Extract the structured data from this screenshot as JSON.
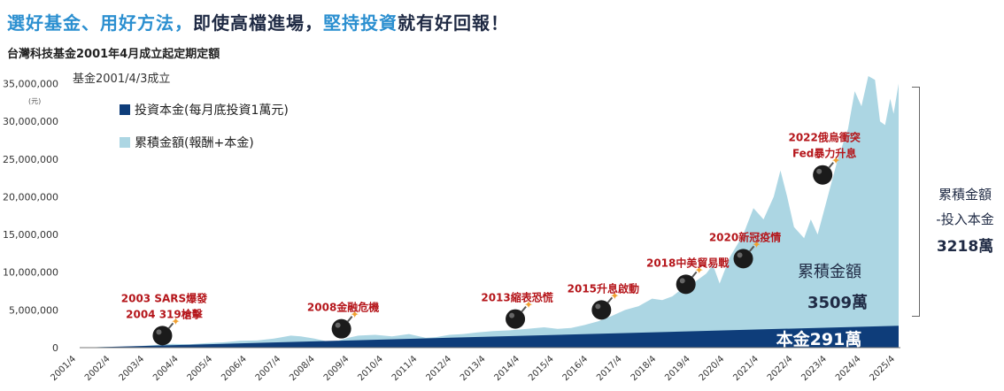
{
  "headline": {
    "part1": "選好基金、用好方法，",
    "part2": "即使高檔進場，",
    "part3": "堅持投資",
    "part4": "就有好回報！"
  },
  "subtitle": "台灣科技基金2001年4月成立起定期定額",
  "right_note": {
    "line1": "累積金額",
    "line2": "-投入本金",
    "value": "3218萬"
  },
  "chart_data": {
    "type": "area",
    "unit_label": "(元)",
    "fund_start_note": "基金2001/4/3成立",
    "ylim": [
      0,
      36000000
    ],
    "y_ticks": [
      {
        "value": 0,
        "label": "0"
      },
      {
        "value": 5000000,
        "label": "5,000,000"
      },
      {
        "value": 10000000,
        "label": "10,000,000"
      },
      {
        "value": 15000000,
        "label": "15,000,000"
      },
      {
        "value": 20000000,
        "label": "20,000,000"
      },
      {
        "value": 25000000,
        "label": "25,000,000"
      },
      {
        "value": 30000000,
        "label": "30,000,000"
      },
      {
        "value": 35000000,
        "label": "35,000,000"
      }
    ],
    "x_ticks": [
      "2001/4",
      "2002/4",
      "2003/4",
      "2004/4",
      "2005/4",
      "2006/4",
      "2007/4",
      "2008/4",
      "2009/4",
      "2010/4",
      "2011/4",
      "2012/4",
      "2013/4",
      "2014/4",
      "2015/4",
      "2016/4",
      "2017/4",
      "2018/4",
      "2019/4",
      "2020/4",
      "2021/4",
      "2022/4",
      "2023/4",
      "2024/4",
      "2025/4"
    ],
    "grid": false,
    "legend_position": "top-left",
    "series": [
      {
        "name": "投資本金(每月底投資1萬元)",
        "color": "#0e3d7a",
        "x": [
          2001.25,
          2025.5
        ],
        "y": [
          0,
          2910000
        ]
      },
      {
        "name": "累積金額(報酬+本金)",
        "color": "#acd6e3",
        "x": [
          2001.25,
          2002.0,
          2002.5,
          2003.0,
          2003.5,
          2004.0,
          2004.5,
          2005.0,
          2005.5,
          2006.0,
          2006.5,
          2007.0,
          2007.5,
          2007.8,
          2008.2,
          2008.7,
          2008.9,
          2009.2,
          2009.5,
          2010.0,
          2010.5,
          2011.0,
          2011.5,
          2011.8,
          2012.2,
          2012.6,
          2013.0,
          2013.5,
          2014.0,
          2014.5,
          2015.0,
          2015.4,
          2015.8,
          2016.2,
          2016.6,
          2017.0,
          2017.4,
          2017.8,
          2018.2,
          2018.5,
          2018.8,
          2019.0,
          2019.4,
          2019.8,
          2020.0,
          2020.2,
          2020.5,
          2020.9,
          2021.2,
          2021.5,
          2021.8,
          2022.0,
          2022.2,
          2022.4,
          2022.7,
          2022.9,
          2023.1,
          2023.4,
          2023.7,
          2024.0,
          2024.2,
          2024.4,
          2024.6,
          2024.8,
          2024.95,
          2025.1,
          2025.25,
          2025.35,
          2025.5
        ],
        "y": [
          0,
          100000,
          120000,
          200000,
          350000,
          500000,
          450000,
          600000,
          700000,
          900000,
          950000,
          1200000,
          1600000,
          1500000,
          1200000,
          700000,
          900000,
          1300000,
          1600000,
          1700000,
          1500000,
          1800000,
          1300000,
          1400000,
          1700000,
          1800000,
          2000000,
          2200000,
          2300000,
          2500000,
          2700000,
          2500000,
          2600000,
          3000000,
          3500000,
          4200000,
          5000000,
          5500000,
          6500000,
          6300000,
          6800000,
          7500000,
          8500000,
          9800000,
          11000000,
          8500000,
          12000000,
          15000000,
          18500000,
          17000000,
          20000000,
          23500000,
          20000000,
          16000000,
          14500000,
          17000000,
          15000000,
          20000000,
          25000000,
          29000000,
          34000000,
          32000000,
          36000000,
          35500000,
          30000000,
          29500000,
          33000000,
          31000000,
          35000000
        ]
      }
    ],
    "annotations": [
      {
        "x": 2003.7,
        "y": 1600000,
        "text": "2003 SARS爆發\n2004 319槍擊"
      },
      {
        "x": 2009.0,
        "y": 2500000,
        "text": "2008金融危機"
      },
      {
        "x": 2014.15,
        "y": 3800000,
        "text": "2013縮表恐慌"
      },
      {
        "x": 2016.7,
        "y": 5000000,
        "text": "2015升息啟動"
      },
      {
        "x": 2019.2,
        "y": 8400000,
        "text": "2018中美貿易戰"
      },
      {
        "x": 2020.9,
        "y": 11800000,
        "text": "2020新冠疫情"
      },
      {
        "x": 2023.25,
        "y": 22900000,
        "text": "2022俄烏衝突\nFed暴力升息"
      }
    ],
    "area_labels": {
      "total_line1": "累積金額",
      "total_line2": "3509萬",
      "principal": "本金291萬"
    }
  }
}
